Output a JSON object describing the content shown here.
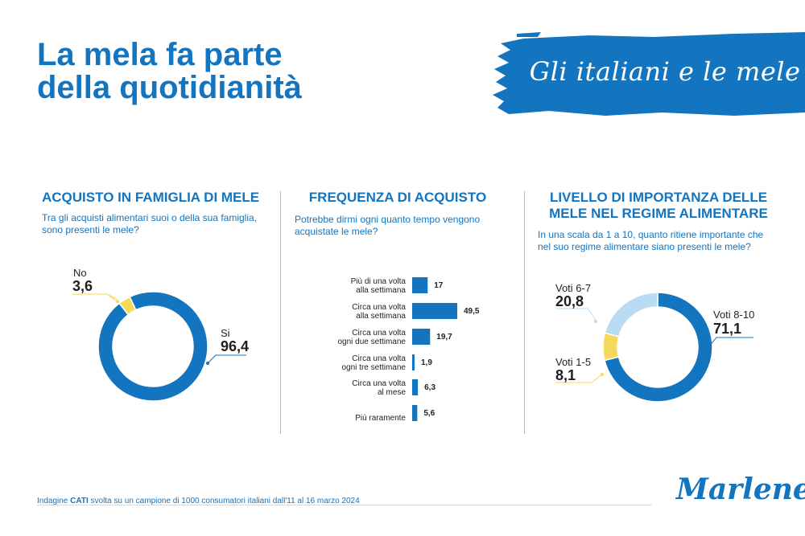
{
  "header": {
    "title_line1": "La mela fa parte",
    "title_line2": "della quotidianità",
    "banner_text": "Gli italiani e le mele"
  },
  "colors": {
    "blue": "#1374bf",
    "yellow": "#f4d95a",
    "light_blue": "#b9dcf3",
    "text": "#1f1f1f"
  },
  "footer": {
    "prefix": "Indagine ",
    "bold": "CATI",
    "rest": " svolta su un campione di 1000 consumatori italiani dall'11 al 16 marzo 2024"
  },
  "brand": {
    "logo_text": "Marlene",
    "registered": "®"
  },
  "chart_data": [
    {
      "type": "pie",
      "title": "ACQUISTO IN FAMIGLIA DI MELE",
      "subtitle": "Tra gli acquisti alimentari suoi o della sua famiglia, sono presenti le mele?",
      "categories": [
        "No",
        "Si"
      ],
      "values": [
        "3,6",
        "96,4"
      ],
      "numeric": [
        3.6,
        96.4
      ]
    },
    {
      "type": "bar",
      "title": "FREQUENZA DI ACQUISTO",
      "subtitle": "Potrebbe dirmi ogni quanto tempo vengono acquistate le mele?",
      "categories": [
        [
          "Più di una volta",
          "alla settimana"
        ],
        [
          "Circa una volta",
          "alla settimana"
        ],
        [
          "Circa una volta",
          "ogni due settimane"
        ],
        [
          "Circa una volta",
          "ogni tre settimane"
        ],
        [
          "Circa una volta",
          "al mese"
        ],
        [
          "Più raramente"
        ]
      ],
      "values": [
        "17",
        "49,5",
        "19,7",
        "1,9",
        "6,3",
        "5,6"
      ],
      "numeric": [
        17,
        49.5,
        19.7,
        1.9,
        6.3,
        5.6
      ]
    },
    {
      "type": "pie",
      "title_line1": "LIVELLO DI IMPORTANZA DELLE",
      "title_line2": "MELE NEL REGIME ALIMENTARE",
      "subtitle": "In una scala da 1 a 10, quanto ritiene importante che nel suo regime alimentare siano presenti le mele?",
      "categories": [
        "Voti 8-10",
        "Voti 1-5",
        "Voti 6-7"
      ],
      "values": [
        "71,1",
        "8,1",
        "20,8"
      ],
      "numeric": [
        71.1,
        8.1,
        20.8
      ]
    }
  ]
}
